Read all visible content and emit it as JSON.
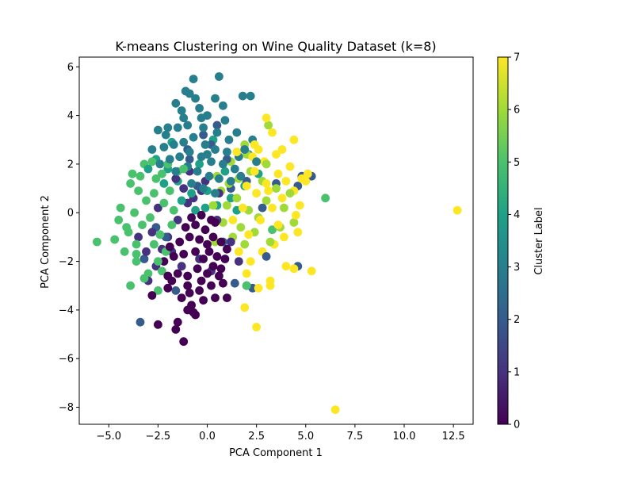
{
  "chart_data": {
    "type": "scatter",
    "title": "K-means Clustering on Wine Quality Dataset (k=8)",
    "xlabel": "PCA Component 1",
    "ylabel": "PCA Component 2",
    "xlim": [
      -6.5,
      13.5
    ],
    "ylim": [
      -8.7,
      6.4
    ],
    "x_ticks": [
      -5.0,
      -2.5,
      0.0,
      2.5,
      5.0,
      7.5,
      10.0,
      12.5
    ],
    "y_ticks": [
      -8,
      -6,
      -4,
      -2,
      0,
      2,
      4,
      6
    ],
    "grid": false,
    "colormap": "viridis",
    "colorbar": {
      "label": "Cluster Label",
      "range": [
        0,
        7
      ],
      "ticks": [
        0,
        1,
        2,
        3,
        4,
        5,
        6,
        7
      ],
      "stops": [
        "#440154",
        "#46327e",
        "#365c8d",
        "#277f8e",
        "#1fa187",
        "#4ac16d",
        "#a0da39",
        "#fde725"
      ]
    },
    "series": [
      {
        "cluster": 0,
        "color": "#440154",
        "points": [
          [
            -2.5,
            -4.6
          ],
          [
            -1.2,
            -5.3
          ],
          [
            -1.6,
            -4.8
          ],
          [
            -1.5,
            -4.5
          ],
          [
            -1.0,
            -4.0
          ],
          [
            -0.8,
            -3.8
          ],
          [
            -0.7,
            -4.1
          ],
          [
            -0.6,
            -4.2
          ],
          [
            -1.3,
            -3.5
          ],
          [
            -0.9,
            -3.3
          ],
          [
            -0.4,
            -3.2
          ],
          [
            -0.2,
            -3.6
          ],
          [
            0.4,
            -3.5
          ],
          [
            1.0,
            -3.5
          ],
          [
            -2.8,
            -3.4
          ],
          [
            -2.0,
            -3.1
          ],
          [
            -1.8,
            -2.8
          ],
          [
            -1.5,
            -2.5
          ],
          [
            -1.0,
            -2.6
          ],
          [
            -0.5,
            -2.3
          ],
          [
            0.0,
            -2.5
          ],
          [
            0.3,
            -2.2
          ],
          [
            0.6,
            -2.6
          ],
          [
            0.8,
            -2.9
          ],
          [
            -2.2,
            -2.0
          ],
          [
            -1.7,
            -1.8
          ],
          [
            -1.2,
            -1.7
          ],
          [
            -0.6,
            -1.6
          ],
          [
            -0.2,
            -1.9
          ],
          [
            0.1,
            -1.6
          ],
          [
            0.5,
            -1.8
          ],
          [
            0.9,
            -1.9
          ],
          [
            -1.4,
            -1.2
          ],
          [
            -0.9,
            -1.0
          ],
          [
            -0.4,
            -1.1
          ],
          [
            0.0,
            -1.3
          ],
          [
            0.3,
            -1.0
          ],
          [
            0.7,
            -1.2
          ],
          [
            -1.1,
            -0.6
          ],
          [
            -0.6,
            -0.5
          ],
          [
            -0.1,
            -0.7
          ],
          [
            0.4,
            -0.4
          ],
          [
            -0.8,
            -0.2
          ],
          [
            -0.3,
            -0.1
          ],
          [
            0.2,
            -0.3
          ],
          [
            -2.0,
            -2.6
          ],
          [
            -1.0,
            -3.0
          ],
          [
            0.2,
            -3.0
          ],
          [
            -0.3,
            -2.8
          ],
          [
            0.7,
            -2.3
          ],
          [
            -1.9,
            -1.4
          ],
          [
            1.0,
            -1.5
          ]
        ]
      },
      {
        "cluster": 1,
        "color": "#46327e",
        "points": [
          [
            -2.3,
            -1.5
          ],
          [
            -2.0,
            -1.0
          ],
          [
            -1.5,
            -0.3
          ],
          [
            -0.7,
            0.6
          ],
          [
            -1.2,
            1.0
          ],
          [
            -2.8,
            -0.8
          ],
          [
            -3.1,
            -1.6
          ],
          [
            -0.3,
            0.9
          ],
          [
            -1.0,
            0.4
          ],
          [
            -2.6,
            -2.2
          ],
          [
            0.5,
            -0.3
          ],
          [
            -1.8,
            -1.6
          ],
          [
            -0.4,
            -1.9
          ],
          [
            0.2,
            -2.4
          ],
          [
            1.2,
            -1.2
          ],
          [
            -2.5,
            0.2
          ],
          [
            -1.6,
            1.4
          ],
          [
            -0.9,
            1.7
          ],
          [
            -3.5,
            -1.0
          ],
          [
            1.6,
            -2.0
          ],
          [
            -3.0,
            -2.8
          ],
          [
            -1.3,
            -2.2
          ],
          [
            -0.1,
            1.3
          ],
          [
            0.6,
            0.8
          ],
          [
            2.0,
            -3.0
          ]
        ]
      },
      {
        "cluster": 2,
        "color": "#365c8d",
        "points": [
          [
            -3.4,
            -4.5
          ],
          [
            -3.2,
            -1.9
          ],
          [
            -2.6,
            -0.6
          ],
          [
            -1.6,
            -3.2
          ],
          [
            2.3,
            -3.1
          ],
          [
            1.4,
            -2.9
          ],
          [
            4.6,
            -2.2
          ],
          [
            4.8,
            1.5
          ],
          [
            5.3,
            1.5
          ],
          [
            4.6,
            1.1
          ],
          [
            3.5,
            1.2
          ],
          [
            1.0,
            2.2
          ],
          [
            0.5,
            3.6
          ],
          [
            -0.2,
            3.2
          ],
          [
            -0.9,
            2.2
          ],
          [
            0.8,
            -1.2
          ],
          [
            -2.1,
            -1.0
          ],
          [
            1.2,
            1.0
          ],
          [
            2.0,
            1.3
          ],
          [
            2.8,
            0.2
          ],
          [
            -1.0,
            2.6
          ],
          [
            0.2,
            2.8
          ],
          [
            3.0,
            -1.8
          ],
          [
            -0.5,
            1.1
          ]
        ]
      },
      {
        "cluster": 3,
        "color": "#277f8e",
        "points": [
          [
            -0.7,
            5.5
          ],
          [
            0.6,
            5.6
          ],
          [
            1.8,
            4.8
          ],
          [
            2.2,
            4.8
          ],
          [
            -1.1,
            5.0
          ],
          [
            -0.9,
            4.9
          ],
          [
            -0.6,
            4.7
          ],
          [
            0.4,
            4.7
          ],
          [
            -1.6,
            4.5
          ],
          [
            -1.3,
            4.2
          ],
          [
            -0.4,
            4.3
          ],
          [
            0.0,
            4.0
          ],
          [
            0.9,
            3.8
          ],
          [
            1.5,
            3.3
          ],
          [
            2.3,
            3.0
          ],
          [
            -2.5,
            3.4
          ],
          [
            -2.1,
            3.2
          ],
          [
            -1.5,
            3.5
          ],
          [
            -1.0,
            3.6
          ],
          [
            -0.2,
            3.5
          ],
          [
            0.5,
            3.3
          ],
          [
            1.1,
            3.0
          ],
          [
            -2.8,
            2.6
          ],
          [
            -2.2,
            2.7
          ],
          [
            -1.7,
            2.8
          ],
          [
            -1.2,
            2.9
          ],
          [
            -0.7,
            3.1
          ],
          [
            -0.1,
            2.8
          ],
          [
            0.4,
            2.6
          ],
          [
            1.0,
            2.5
          ],
          [
            1.6,
            2.3
          ],
          [
            -2.4,
            2.0
          ],
          [
            -1.9,
            2.2
          ],
          [
            -1.4,
            2.3
          ],
          [
            -0.9,
            2.5
          ],
          [
            -0.3,
            2.3
          ],
          [
            0.2,
            2.1
          ],
          [
            0.8,
            2.0
          ],
          [
            1.4,
            1.8
          ],
          [
            -1.6,
            1.7
          ],
          [
            -1.0,
            1.9
          ],
          [
            -0.5,
            1.7
          ],
          [
            0.1,
            1.5
          ],
          [
            0.6,
            1.4
          ],
          [
            1.2,
            1.3
          ],
          [
            -0.8,
            1.2
          ],
          [
            -0.2,
            1.0
          ],
          [
            0.4,
            0.8
          ],
          [
            -1.2,
            3.9
          ],
          [
            0.8,
            4.4
          ],
          [
            -0.3,
            3.9
          ],
          [
            1.9,
            2.6
          ],
          [
            -2.0,
            3.5
          ],
          [
            0.0,
            2.4
          ],
          [
            1.7,
            1.5
          ],
          [
            2.5,
            2.1
          ]
        ]
      },
      {
        "cluster": 4,
        "color": "#1fa187",
        "points": [
          [
            -2.6,
            2.2
          ],
          [
            -2.0,
            1.8
          ],
          [
            -1.5,
            1.3
          ],
          [
            -0.8,
            0.8
          ],
          [
            -0.1,
            0.2
          ],
          [
            0.5,
            0.3
          ],
          [
            1.2,
            0.6
          ],
          [
            1.9,
            1.1
          ],
          [
            2.6,
            1.6
          ],
          [
            -1.3,
            0.5
          ],
          [
            -2.2,
            1.2
          ],
          [
            0.9,
            1.7
          ],
          [
            -0.4,
            2.0
          ],
          [
            -1.8,
            2.9
          ],
          [
            0.3,
            3.0
          ],
          [
            2.1,
            2.4
          ],
          [
            -3.0,
            1.8
          ],
          [
            1.5,
            0.1
          ],
          [
            -0.6,
            0.1
          ],
          [
            0.0,
            0.9
          ]
        ]
      },
      {
        "cluster": 5,
        "color": "#4ac16d",
        "points": [
          [
            -5.6,
            -1.2
          ],
          [
            -4.7,
            -1.1
          ],
          [
            -4.4,
            0.2
          ],
          [
            -4.5,
            -0.3
          ],
          [
            -4.0,
            -0.8
          ],
          [
            -3.6,
            -2.0
          ],
          [
            -3.9,
            -3.0
          ],
          [
            -3.6,
            -1.7
          ],
          [
            -3.0,
            -2.5
          ],
          [
            -2.5,
            -3.2
          ],
          [
            -2.3,
            -2.4
          ],
          [
            -3.8,
            1.6
          ],
          [
            -3.4,
            1.5
          ],
          [
            -3.2,
            2.0
          ],
          [
            -2.8,
            2.1
          ],
          [
            -3.5,
            0.9
          ],
          [
            -3.1,
            0.5
          ],
          [
            -2.7,
            0.8
          ],
          [
            -2.9,
            -0.2
          ],
          [
            -3.3,
            -0.5
          ],
          [
            -2.4,
            -0.9
          ],
          [
            -2.2,
            0.4
          ],
          [
            -1.9,
            0.9
          ],
          [
            -1.5,
            1.7
          ],
          [
            -2.6,
            1.4
          ],
          [
            -3.7,
            0.0
          ],
          [
            -2.1,
            -1.6
          ],
          [
            -2.5,
            -2.0
          ],
          [
            -3.6,
            -1.3
          ],
          [
            -4.1,
            -0.6
          ],
          [
            -1.7,
            0.1
          ],
          [
            -2.0,
            2.0
          ],
          [
            -3.9,
            1.2
          ],
          [
            -1.8,
            -0.5
          ],
          [
            -2.7,
            -1.3
          ],
          [
            2.0,
            -3.0
          ],
          [
            6.0,
            0.6
          ],
          [
            3.3,
            -0.7
          ],
          [
            -3.2,
            -2.7
          ],
          [
            -4.2,
            -1.6
          ],
          [
            -1.2,
            1.8
          ],
          [
            -2.3,
            1.6
          ]
        ]
      },
      {
        "cluster": 6,
        "color": "#a0da39",
        "points": [
          [
            3.1,
            3.6
          ],
          [
            1.9,
            2.8
          ],
          [
            1.2,
            2.1
          ],
          [
            0.5,
            1.5
          ],
          [
            0.7,
            0.9
          ],
          [
            1.0,
            0.3
          ],
          [
            1.5,
            0.6
          ],
          [
            2.1,
            0.1
          ],
          [
            2.6,
            -0.2
          ],
          [
            0.8,
            -0.4
          ],
          [
            1.3,
            -1.0
          ],
          [
            1.9,
            -1.3
          ],
          [
            2.4,
            -0.8
          ],
          [
            3.0,
            0.5
          ],
          [
            3.5,
            1.0
          ],
          [
            3.9,
            0.2
          ],
          [
            2.8,
            1.3
          ],
          [
            2.2,
            1.7
          ],
          [
            1.6,
            1.4
          ],
          [
            0.3,
            0.3
          ],
          [
            3.7,
            -0.6
          ],
          [
            4.2,
            0.8
          ],
          [
            2.0,
            2.4
          ],
          [
            1.1,
            1.2
          ],
          [
            3.2,
            -1.2
          ],
          [
            0.4,
            -1.2
          ],
          [
            4.4,
            -0.4
          ],
          [
            2.5,
            2.1
          ],
          [
            1.7,
            -0.6
          ],
          [
            3.0,
            2.0
          ]
        ]
      },
      {
        "cluster": 7,
        "color": "#fde725",
        "points": [
          [
            12.7,
            0.1
          ],
          [
            6.5,
            -8.1
          ],
          [
            2.5,
            -4.7
          ],
          [
            1.9,
            -3.9
          ],
          [
            2.6,
            -3.1
          ],
          [
            3.2,
            -3.0
          ],
          [
            3.2,
            -2.8
          ],
          [
            4.0,
            -2.2
          ],
          [
            4.4,
            -2.3
          ],
          [
            5.3,
            -2.4
          ],
          [
            2.2,
            -2.0
          ],
          [
            2.8,
            -1.6
          ],
          [
            3.4,
            -1.3
          ],
          [
            3.9,
            -1.0
          ],
          [
            4.6,
            -0.8
          ],
          [
            2.1,
            -0.9
          ],
          [
            2.7,
            -0.3
          ],
          [
            3.3,
            0.2
          ],
          [
            3.8,
            0.6
          ],
          [
            4.4,
            0.9
          ],
          [
            5.0,
            1.3
          ],
          [
            2.5,
            0.8
          ],
          [
            3.0,
            1.2
          ],
          [
            3.6,
            1.6
          ],
          [
            4.2,
            1.9
          ],
          [
            4.8,
            1.4
          ],
          [
            5.1,
            1.6
          ],
          [
            2.4,
            1.7
          ],
          [
            2.9,
            2.1
          ],
          [
            3.5,
            2.4
          ],
          [
            4.0,
            1.3
          ],
          [
            2.6,
            2.6
          ],
          [
            3.0,
            3.9
          ],
          [
            3.3,
            3.3
          ],
          [
            4.4,
            3.0
          ],
          [
            2.4,
            2.8
          ],
          [
            1.8,
            0.2
          ],
          [
            1.6,
            -1.6
          ],
          [
            2.0,
            1.1
          ],
          [
            3.6,
            -0.5
          ],
          [
            4.5,
            -0.1
          ],
          [
            1.5,
            2.5
          ],
          [
            2.3,
            2.3
          ],
          [
            3.1,
            0.9
          ],
          [
            2.0,
            -2.5
          ],
          [
            1.3,
            -0.3
          ],
          [
            4.7,
            0.3
          ],
          [
            3.8,
            2.6
          ]
        ]
      }
    ]
  }
}
